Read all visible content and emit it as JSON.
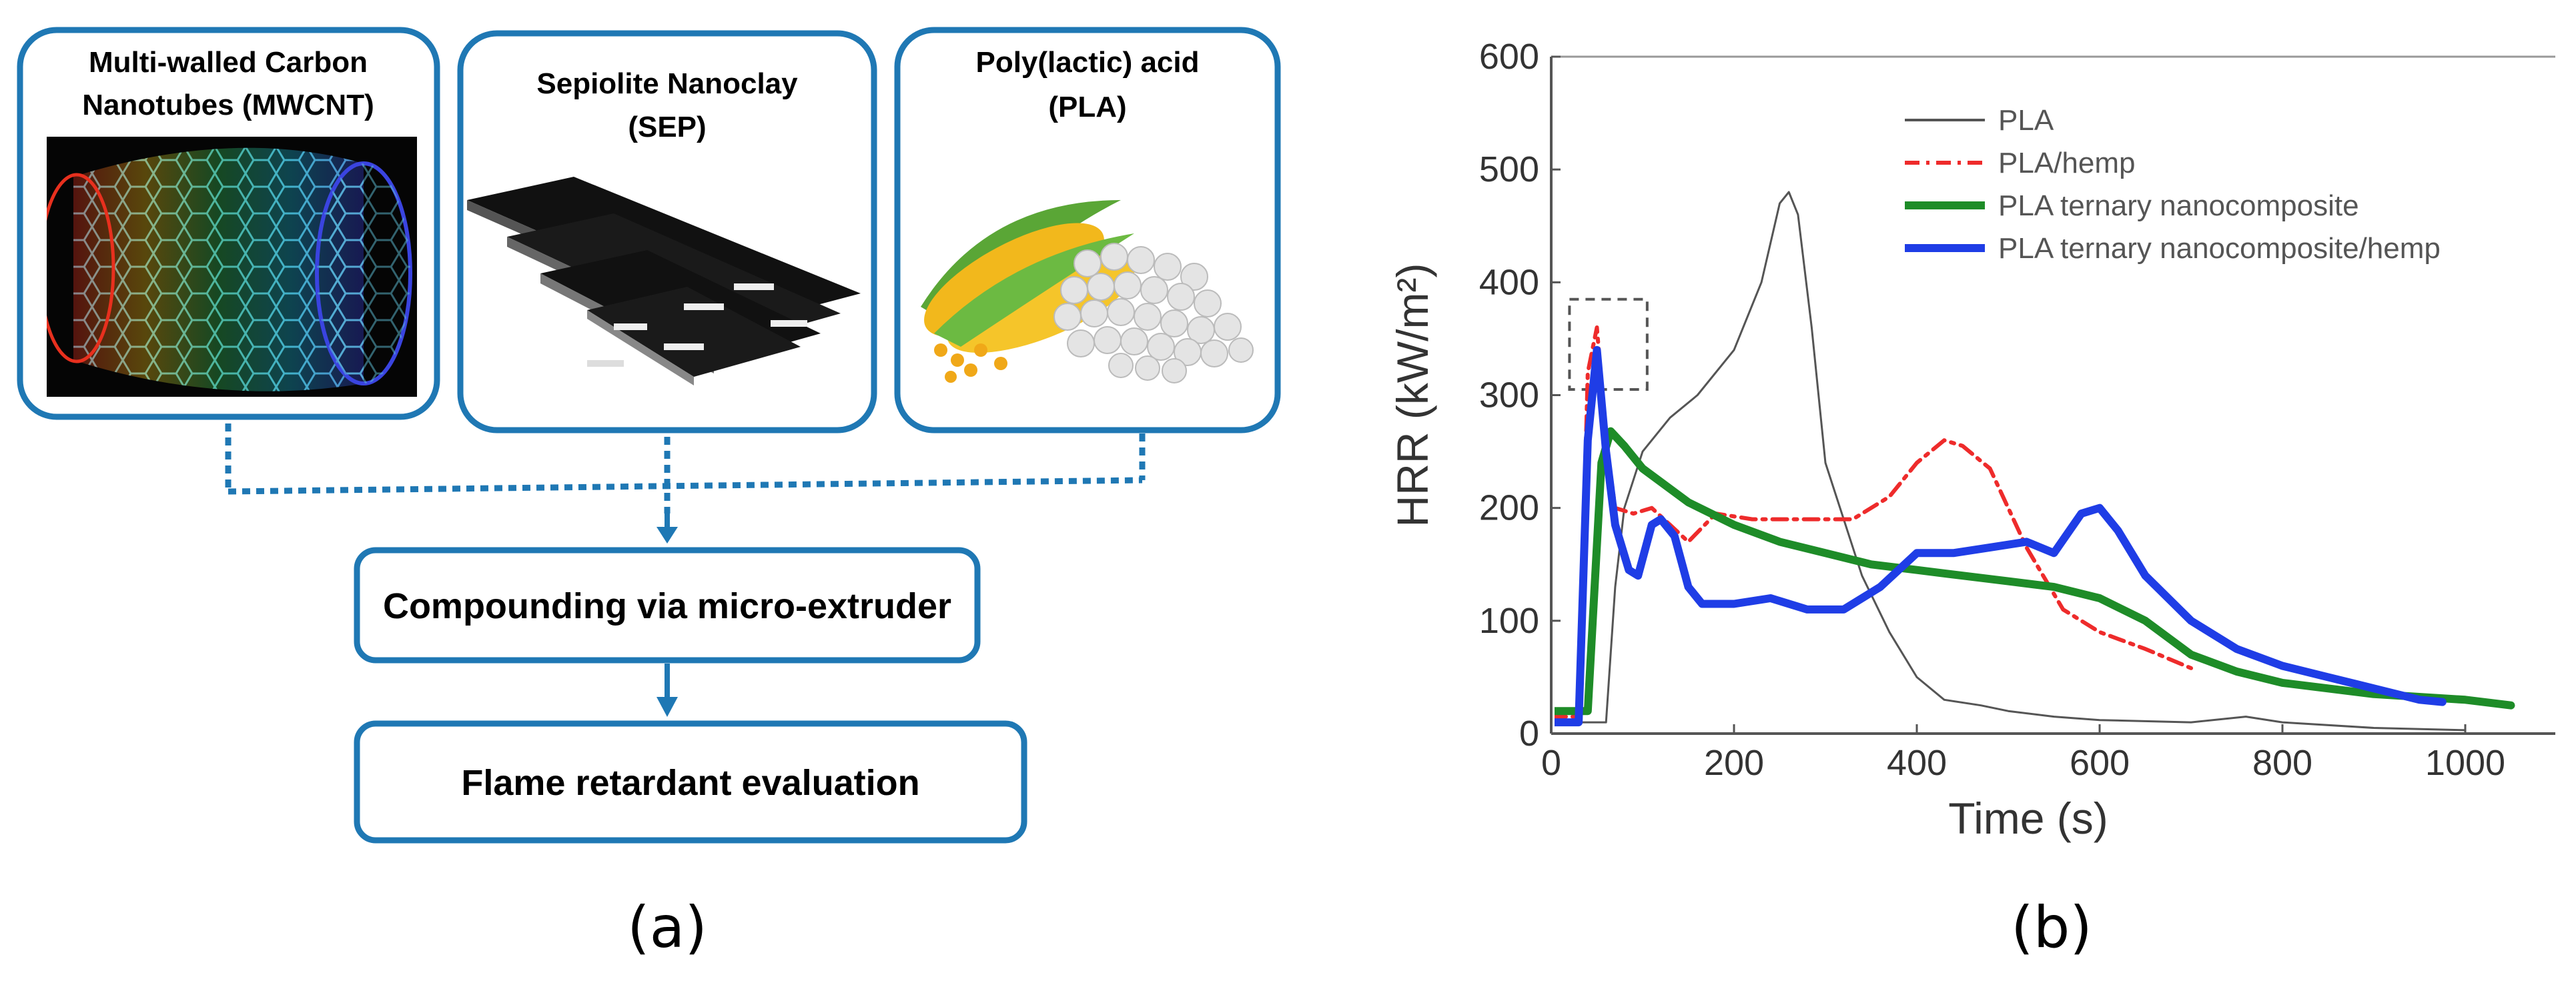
{
  "panel_a": {
    "label": "(a)",
    "components": [
      {
        "title_line1": "Multi-walled Carbon",
        "title_line2": "Nanotubes (MWCNT)",
        "image": "carbon-nanotube-illustration"
      },
      {
        "title_line1": "Sepiolite  Nanoclay",
        "title_line2": "(SEP)",
        "image": "nanoclay-layers-illustration"
      },
      {
        "title_line1": "Poly(lactic) acid",
        "title_line2": "(PLA)",
        "image": "corn-and-pellets-illustration"
      }
    ],
    "steps": [
      "Compounding via micro-extruder",
      "Flame retardant evaluation"
    ],
    "accent_color": "#1f78b4"
  },
  "panel_b": {
    "label": "(b)"
  },
  "chart_data": {
    "type": "line",
    "title": "",
    "xlabel": "Time (s)",
    "ylabel": "HRR (kW/m²)",
    "xlim": [
      0,
      1100
    ],
    "ylim": [
      0,
      600
    ],
    "xticks": [
      0,
      200,
      400,
      600,
      800,
      1000
    ],
    "yticks": [
      0,
      100,
      200,
      300,
      400,
      500,
      600
    ],
    "legend_position": "top-right",
    "annotations": [
      {
        "type": "dashed-box",
        "x_range": [
          20,
          105
        ],
        "y_range": [
          305,
          385
        ]
      }
    ],
    "series": [
      {
        "name": "PLA",
        "color": "#555555",
        "style": "solid-thin",
        "points": [
          [
            0,
            10
          ],
          [
            40,
            10
          ],
          [
            60,
            10
          ],
          [
            70,
            130
          ],
          [
            80,
            200
          ],
          [
            100,
            250
          ],
          [
            130,
            280
          ],
          [
            160,
            300
          ],
          [
            200,
            340
          ],
          [
            230,
            400
          ],
          [
            250,
            470
          ],
          [
            260,
            480
          ],
          [
            270,
            460
          ],
          [
            285,
            360
          ],
          [
            300,
            240
          ],
          [
            320,
            190
          ],
          [
            340,
            140
          ],
          [
            370,
            90
          ],
          [
            400,
            50
          ],
          [
            430,
            30
          ],
          [
            470,
            25
          ],
          [
            500,
            20
          ],
          [
            550,
            15
          ],
          [
            600,
            12
          ],
          [
            700,
            10
          ],
          [
            760,
            15
          ],
          [
            800,
            10
          ],
          [
            900,
            5
          ],
          [
            1000,
            3
          ]
        ]
      },
      {
        "name": "PLA/hemp",
        "color": "#ee2b2b",
        "style": "dash-dot",
        "points": [
          [
            0,
            15
          ],
          [
            30,
            15
          ],
          [
            40,
            320
          ],
          [
            50,
            360
          ],
          [
            60,
            260
          ],
          [
            70,
            200
          ],
          [
            90,
            195
          ],
          [
            110,
            200
          ],
          [
            130,
            185
          ],
          [
            150,
            170
          ],
          [
            180,
            195
          ],
          [
            220,
            190
          ],
          [
            280,
            190
          ],
          [
            330,
            190
          ],
          [
            370,
            210
          ],
          [
            400,
            240
          ],
          [
            430,
            260
          ],
          [
            450,
            255
          ],
          [
            480,
            235
          ],
          [
            520,
            165
          ],
          [
            560,
            110
          ],
          [
            600,
            90
          ],
          [
            650,
            75
          ],
          [
            700,
            58
          ]
        ]
      },
      {
        "name": "PLA ternary nanocomposite",
        "color": "#1e8c28",
        "style": "solid-thick",
        "points": [
          [
            0,
            20
          ],
          [
            20,
            20
          ],
          [
            40,
            20
          ],
          [
            55,
            240
          ],
          [
            65,
            268
          ],
          [
            80,
            255
          ],
          [
            100,
            235
          ],
          [
            150,
            205
          ],
          [
            200,
            185
          ],
          [
            250,
            170
          ],
          [
            300,
            160
          ],
          [
            350,
            150
          ],
          [
            400,
            145
          ],
          [
            450,
            140
          ],
          [
            500,
            135
          ],
          [
            550,
            130
          ],
          [
            600,
            120
          ],
          [
            650,
            100
          ],
          [
            700,
            70
          ],
          [
            750,
            55
          ],
          [
            800,
            45
          ],
          [
            900,
            35
          ],
          [
            1000,
            30
          ],
          [
            1050,
            25
          ]
        ]
      },
      {
        "name": "PLA ternary nanocomposite/hemp",
        "color": "#1f3de6",
        "style": "solid-thick",
        "points": [
          [
            0,
            10
          ],
          [
            30,
            10
          ],
          [
            40,
            260
          ],
          [
            50,
            340
          ],
          [
            60,
            250
          ],
          [
            70,
            185
          ],
          [
            85,
            145
          ],
          [
            95,
            140
          ],
          [
            110,
            185
          ],
          [
            120,
            190
          ],
          [
            135,
            175
          ],
          [
            150,
            130
          ],
          [
            165,
            115
          ],
          [
            200,
            115
          ],
          [
            240,
            120
          ],
          [
            280,
            110
          ],
          [
            320,
            110
          ],
          [
            360,
            130
          ],
          [
            400,
            160
          ],
          [
            440,
            160
          ],
          [
            480,
            165
          ],
          [
            520,
            170
          ],
          [
            550,
            160
          ],
          [
            580,
            195
          ],
          [
            600,
            200
          ],
          [
            620,
            180
          ],
          [
            650,
            140
          ],
          [
            700,
            100
          ],
          [
            750,
            75
          ],
          [
            800,
            60
          ],
          [
            850,
            50
          ],
          [
            900,
            40
          ],
          [
            950,
            30
          ],
          [
            975,
            28
          ]
        ]
      }
    ]
  }
}
